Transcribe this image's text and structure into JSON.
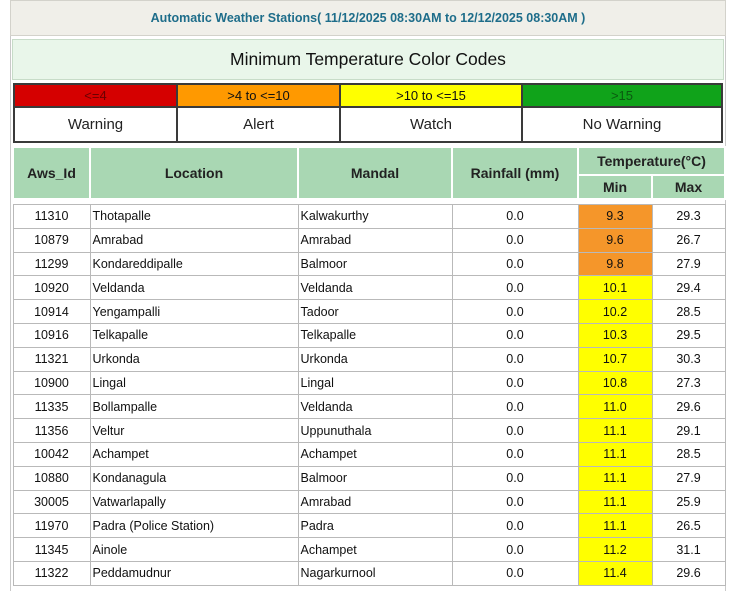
{
  "header": {
    "title": "Automatic Weather Stations( 11/12/2025 08:30AM to 12/12/2025 08:30AM )"
  },
  "color_codes": {
    "title": "Minimum Temperature Color Codes",
    "ranges": [
      {
        "range": "<=4",
        "label": "Warning",
        "color": "#d50000"
      },
      {
        "range": ">4 to <=10",
        "label": "Alert",
        "color": "#ff9900"
      },
      {
        "range": ">10 to <=15",
        "label": "Watch",
        "color": "#ffff00"
      },
      {
        "range": ">15",
        "label": "No Warning",
        "color": "#10a31a"
      }
    ]
  },
  "table": {
    "columns": {
      "aws_id": "Aws_Id",
      "location": "Location",
      "mandal": "Mandal",
      "rainfall": "Rainfall (mm)",
      "temperature": "Temperature(°C)",
      "min": "Min",
      "max": "Max"
    },
    "rows": [
      {
        "aws_id": "11310",
        "location": "Thotapalle",
        "mandal": "Kalwakurthy",
        "rainfall": "0.0",
        "min": "9.3",
        "max": "29.3",
        "min_color": "#f5962a"
      },
      {
        "aws_id": "10879",
        "location": "Amrabad",
        "mandal": "Amrabad",
        "rainfall": "0.0",
        "min": "9.6",
        "max": "26.7",
        "min_color": "#f5962a"
      },
      {
        "aws_id": "11299",
        "location": "Kondareddipalle",
        "mandal": "Balmoor",
        "rainfall": "0.0",
        "min": "9.8",
        "max": "27.9",
        "min_color": "#f5962a"
      },
      {
        "aws_id": "10920",
        "location": "Veldanda",
        "mandal": "Veldanda",
        "rainfall": "0.0",
        "min": "10.1",
        "max": "29.4",
        "min_color": "#ffff00"
      },
      {
        "aws_id": "10914",
        "location": "Yengampalli",
        "mandal": "Tadoor",
        "rainfall": "0.0",
        "min": "10.2",
        "max": "28.5",
        "min_color": "#ffff00"
      },
      {
        "aws_id": "10916",
        "location": "Telkapalle",
        "mandal": "Telkapalle",
        "rainfall": "0.0",
        "min": "10.3",
        "max": "29.5",
        "min_color": "#ffff00"
      },
      {
        "aws_id": "11321",
        "location": "Urkonda",
        "mandal": "Urkonda",
        "rainfall": "0.0",
        "min": "10.7",
        "max": "30.3",
        "min_color": "#ffff00"
      },
      {
        "aws_id": "10900",
        "location": "Lingal",
        "mandal": "Lingal",
        "rainfall": "0.0",
        "min": "10.8",
        "max": "27.3",
        "min_color": "#ffff00"
      },
      {
        "aws_id": "11335",
        "location": "Bollampalle",
        "mandal": "Veldanda",
        "rainfall": "0.0",
        "min": "11.0",
        "max": "29.6",
        "min_color": "#ffff00"
      },
      {
        "aws_id": "11356",
        "location": "Veltur",
        "mandal": "Uppunuthala",
        "rainfall": "0.0",
        "min": "11.1",
        "max": "29.1",
        "min_color": "#ffff00"
      },
      {
        "aws_id": "10042",
        "location": "Achampet",
        "mandal": "Achampet",
        "rainfall": "0.0",
        "min": "11.1",
        "max": "28.5",
        "min_color": "#ffff00"
      },
      {
        "aws_id": "10880",
        "location": "Kondanagula",
        "mandal": "Balmoor",
        "rainfall": "0.0",
        "min": "11.1",
        "max": "27.9",
        "min_color": "#ffff00"
      },
      {
        "aws_id": "30005",
        "location": "Vatwarlapally",
        "mandal": "Amrabad",
        "rainfall": "0.0",
        "min": "11.1",
        "max": "25.9",
        "min_color": "#ffff00"
      },
      {
        "aws_id": "11970",
        "location": "Padra (Police Station)",
        "mandal": "Padra",
        "rainfall": "0.0",
        "min": "11.1",
        "max": "26.5",
        "min_color": "#ffff00"
      },
      {
        "aws_id": "11345",
        "location": "Ainole",
        "mandal": "Achampet",
        "rainfall": "0.0",
        "min": "11.2",
        "max": "31.1",
        "min_color": "#ffff00"
      },
      {
        "aws_id": "11322",
        "location": "Peddamudnur",
        "mandal": "Nagarkurnool",
        "rainfall": "0.0",
        "min": "11.4",
        "max": "29.6",
        "min_color": "#ffff00"
      }
    ]
  }
}
